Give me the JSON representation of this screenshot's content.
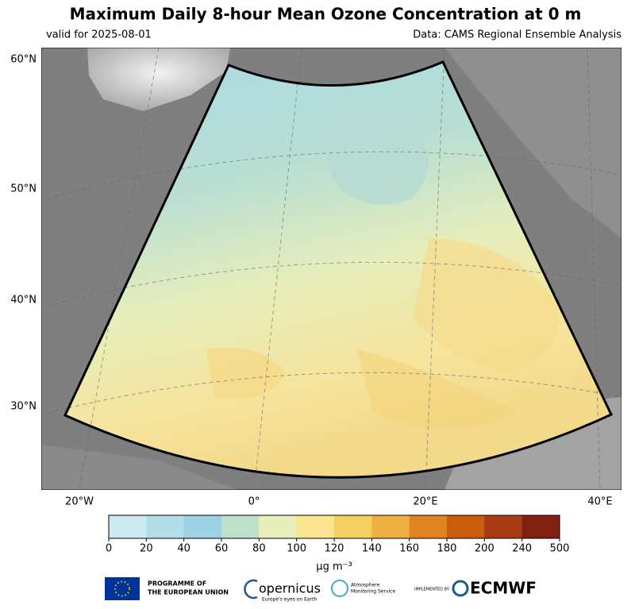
{
  "header": {
    "title": "Maximum Daily 8-hour Mean Ozone Concentration at 0 m",
    "valid": "valid for 2025-08-01",
    "source": "Data: CAMS Regional Ensemble Analysis"
  },
  "map": {
    "lat_labels": [
      "60°N",
      "50°N",
      "40°N",
      "30°N"
    ],
    "lon_labels": [
      "20°W",
      "0°",
      "20°E",
      "40°E"
    ]
  },
  "colorbar": {
    "bounds": [
      0,
      20,
      40,
      60,
      80,
      100,
      120,
      140,
      160,
      180,
      200,
      240,
      500
    ],
    "colors": [
      "#cdeaf3",
      "#b2dee9",
      "#9dd2e2",
      "#bfe0c9",
      "#e9efba",
      "#f9e590",
      "#f6cf62",
      "#efb03f",
      "#e08421",
      "#cb5b0f",
      "#a83b11",
      "#82200f"
    ],
    "unit": "μg m⁻³"
  },
  "footer": {
    "eu": [
      "PROGRAMME OF",
      "THE EUROPEAN UNION"
    ],
    "copernicus": "opernicus",
    "copernicus_tag": "Europe's eyes on Earth",
    "cams": [
      "Atmosphere",
      "Monitoring Service"
    ],
    "implemented": "IMPLEMENTED BY",
    "ecmwf": "ECMWF"
  }
}
